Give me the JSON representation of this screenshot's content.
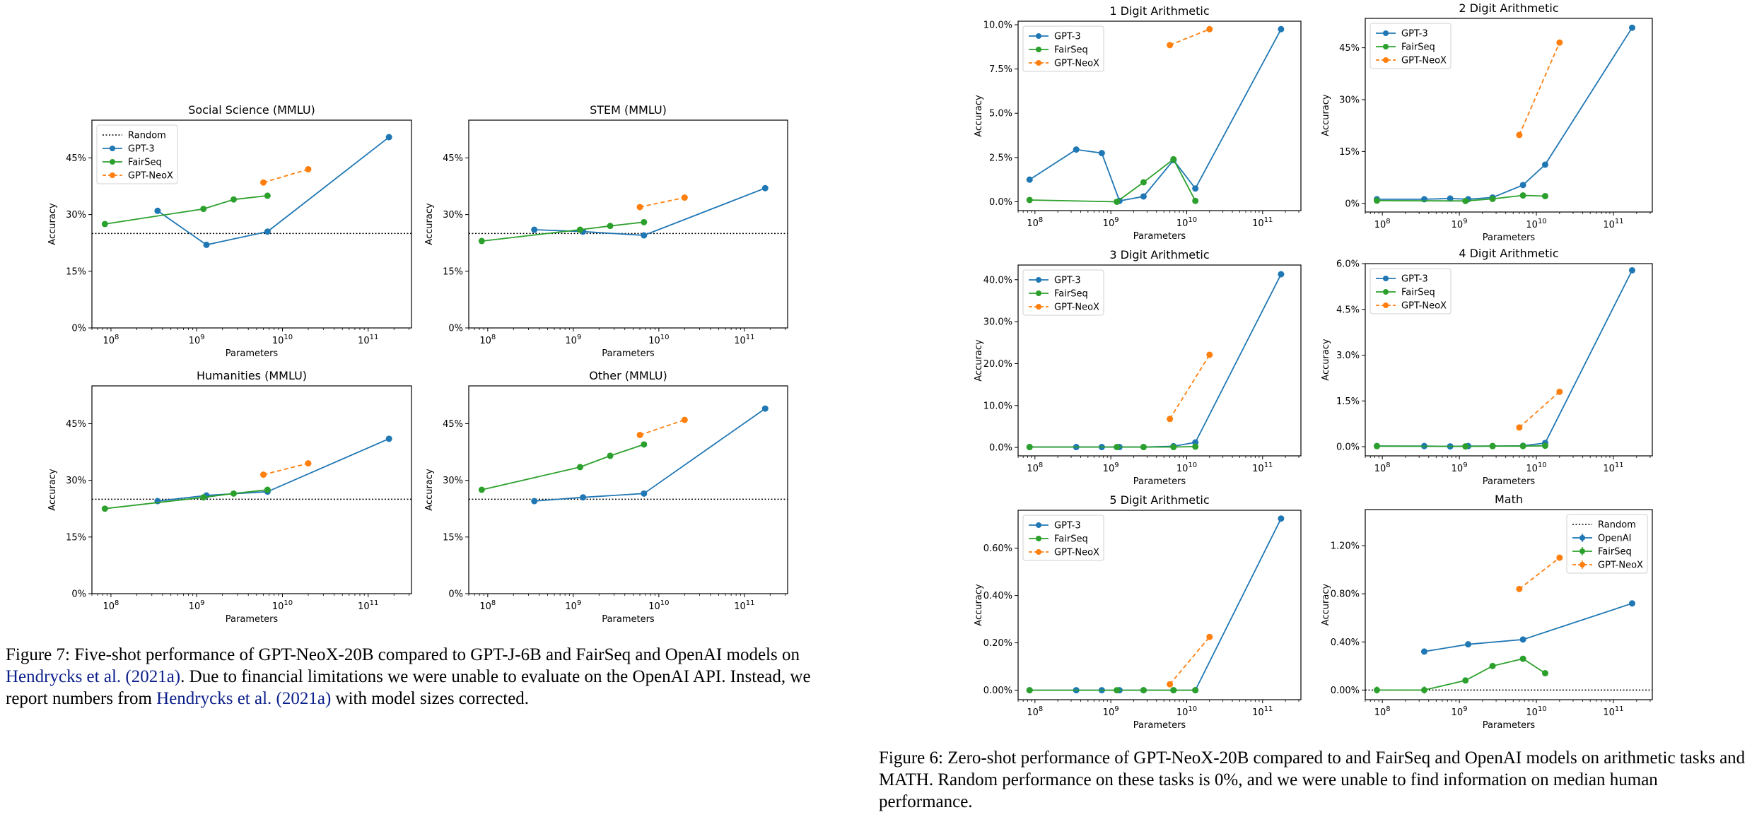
{
  "colors": {
    "gpt3": "#1f77b4",
    "fairseq": "#2ca02c",
    "neox": "#ff7f0e",
    "random": "#000000"
  },
  "caption_left": {
    "prefix": "Figure 7: Five-shot performance of GPT-NeoX-20B compared to GPT-J-6B and FairSeq and OpenAI models on ",
    "ref1": "Hendrycks et al. (2021a)",
    "middle": ". Due to financial limitations we were unable to evaluate on the OpenAI API. Instead, we report numbers from ",
    "ref2": "Hendrycks et al.",
    "ref2b": "(2021a)",
    "suffix": " with model sizes corrected."
  },
  "caption_right": {
    "text": "Figure 6: Zero-shot performance of GPT-NeoX-20B compared to and FairSeq and OpenAI models on arithmetic tasks and MATH. Random performance on these tasks is 0%, and we were unable to find information on median human performance."
  },
  "chart_data": [
    {
      "type": "line",
      "id": "social",
      "title": "Social Science (MMLU)",
      "xlabel": "Parameters",
      "ylabel": "Accuracy",
      "xscale": "log",
      "xlim": [
        60000000.0,
        320000000000.0
      ],
      "ylim": [
        0,
        55
      ],
      "yticks": [
        0,
        15,
        30,
        45
      ],
      "ytick_labels": [
        "0%",
        "15%",
        "30%",
        "45%"
      ],
      "xticks": [
        100000000.0,
        1000000000.0,
        10000000000.0,
        100000000000.0
      ],
      "random_line": 25,
      "legend": [
        "Random",
        "GPT-3",
        "FairSeq",
        "GPT-NeoX"
      ],
      "legend_loc": "upper-left",
      "series": [
        {
          "name": "GPT-3",
          "color": "gpt3",
          "dashed": false,
          "x": [
            350000000.0,
            1300000000.0,
            6700000000.0,
            175000000000.0
          ],
          "y": [
            31,
            22,
            25.5,
            50.5
          ]
        },
        {
          "name": "FairSeq",
          "color": "fairseq",
          "dashed": false,
          "x": [
            85000000.0,
            1200000000.0,
            2700000000.0,
            6700000000.0
          ],
          "y": [
            27.5,
            31.5,
            34,
            35
          ]
        },
        {
          "name": "GPT-NeoX",
          "color": "neox",
          "dashed": true,
          "x": [
            6000000000.0,
            20000000000.0
          ],
          "y": [
            38.5,
            42
          ]
        }
      ]
    },
    {
      "type": "line",
      "id": "stem",
      "title": "STEM (MMLU)",
      "xlabel": "Parameters",
      "ylabel": "Accuracy",
      "xscale": "log",
      "xlim": [
        60000000.0,
        320000000000.0
      ],
      "ylim": [
        0,
        55
      ],
      "yticks": [
        0,
        15,
        30,
        45
      ],
      "ytick_labels": [
        "0%",
        "15%",
        "30%",
        "45%"
      ],
      "xticks": [
        100000000.0,
        1000000000.0,
        10000000000.0,
        100000000000.0
      ],
      "random_line": 25,
      "legend": [],
      "legend_loc": "none",
      "series": [
        {
          "name": "GPT-3",
          "color": "gpt3",
          "dashed": false,
          "x": [
            350000000.0,
            1300000000.0,
            6700000000.0,
            175000000000.0
          ],
          "y": [
            26,
            25.5,
            24.5,
            37
          ]
        },
        {
          "name": "FairSeq",
          "color": "fairseq",
          "dashed": false,
          "x": [
            85000000.0,
            1200000000.0,
            2700000000.0,
            6700000000.0
          ],
          "y": [
            23,
            26,
            27,
            28
          ]
        },
        {
          "name": "GPT-NeoX",
          "color": "neox",
          "dashed": true,
          "x": [
            6000000000.0,
            20000000000.0
          ],
          "y": [
            32,
            34.5
          ]
        }
      ]
    },
    {
      "type": "line",
      "id": "humanities",
      "title": "Humanities (MMLU)",
      "xlabel": "Parameters",
      "ylabel": "Accuracy",
      "xscale": "log",
      "xlim": [
        60000000.0,
        320000000000.0
      ],
      "ylim": [
        0,
        55
      ],
      "yticks": [
        0,
        15,
        30,
        45
      ],
      "ytick_labels": [
        "0%",
        "15%",
        "30%",
        "45%"
      ],
      "xticks": [
        100000000.0,
        1000000000.0,
        10000000000.0,
        100000000000.0
      ],
      "random_line": 25,
      "legend": [],
      "legend_loc": "none",
      "series": [
        {
          "name": "GPT-3",
          "color": "gpt3",
          "dashed": false,
          "x": [
            350000000.0,
            1300000000.0,
            6700000000.0,
            175000000000.0
          ],
          "y": [
            24.5,
            26,
            27,
            41
          ]
        },
        {
          "name": "FairSeq",
          "color": "fairseq",
          "dashed": false,
          "x": [
            85000000.0,
            1200000000.0,
            2700000000.0,
            6700000000.0
          ],
          "y": [
            22.5,
            25.5,
            26.5,
            27.5
          ]
        },
        {
          "name": "GPT-NeoX",
          "color": "neox",
          "dashed": true,
          "x": [
            6000000000.0,
            20000000000.0
          ],
          "y": [
            31.5,
            34.5
          ]
        }
      ]
    },
    {
      "type": "line",
      "id": "other",
      "title": "Other (MMLU)",
      "xlabel": "Parameters",
      "ylabel": "Accuracy",
      "xscale": "log",
      "xlim": [
        60000000.0,
        320000000000.0
      ],
      "ylim": [
        0,
        55
      ],
      "yticks": [
        0,
        15,
        30,
        45
      ],
      "ytick_labels": [
        "0%",
        "15%",
        "30%",
        "45%"
      ],
      "xticks": [
        100000000.0,
        1000000000.0,
        10000000000.0,
        100000000000.0
      ],
      "random_line": 25,
      "legend": [],
      "legend_loc": "none",
      "series": [
        {
          "name": "GPT-3",
          "color": "gpt3",
          "dashed": false,
          "x": [
            350000000.0,
            1300000000.0,
            6700000000.0,
            175000000000.0
          ],
          "y": [
            24.5,
            25.5,
            26.5,
            49
          ]
        },
        {
          "name": "FairSeq",
          "color": "fairseq",
          "dashed": false,
          "x": [
            85000000.0,
            1200000000.0,
            2700000000.0,
            6700000000.0
          ],
          "y": [
            27.5,
            33.5,
            36.5,
            39.5
          ]
        },
        {
          "name": "GPT-NeoX",
          "color": "neox",
          "dashed": true,
          "x": [
            6000000000.0,
            20000000000.0
          ],
          "y": [
            42,
            46
          ]
        }
      ]
    },
    {
      "type": "line",
      "id": "arith1",
      "title": "1 Digit Arithmetic",
      "xlabel": "Parameters",
      "ylabel": "Accuracy",
      "xscale": "log",
      "xlim": [
        60000000.0,
        320000000000.0
      ],
      "ylim": [
        -0.5,
        10.2
      ],
      "yticks": [
        0,
        2.5,
        5,
        7.5,
        10
      ],
      "ytick_labels": [
        "0.0%",
        "2.5%",
        "5.0%",
        "7.5%",
        "10.0%"
      ],
      "xticks": [
        100000000.0,
        1000000000.0,
        10000000000.0,
        100000000000.0
      ],
      "random_line": null,
      "legend": [
        "GPT-3",
        "FairSeq",
        "GPT-NeoX"
      ],
      "legend_loc": "upper-left",
      "series": [
        {
          "name": "GPT-3",
          "color": "gpt3",
          "dashed": false,
          "x": [
            85000000.0,
            350000000.0,
            760000000.0,
            1300000000.0,
            2700000000.0,
            6700000000.0,
            13000000000.0,
            175000000000.0
          ],
          "y": [
            1.25,
            2.95,
            2.75,
            0.05,
            0.3,
            2.35,
            0.75,
            9.75
          ]
        },
        {
          "name": "FairSeq",
          "color": "fairseq",
          "dashed": false,
          "x": [
            85000000.0,
            1200000000.0,
            2700000000.0,
            6700000000.0,
            13000000000.0
          ],
          "y": [
            0.1,
            0.0,
            1.1,
            2.4,
            0.05
          ]
        },
        {
          "name": "GPT-NeoX",
          "color": "neox",
          "dashed": true,
          "x": [
            6000000000.0,
            20000000000.0
          ],
          "y": [
            8.85,
            9.75
          ]
        }
      ]
    },
    {
      "type": "line",
      "id": "arith2",
      "title": "2 Digit Arithmetic",
      "xlabel": "Parameters",
      "ylabel": "Accuracy",
      "xscale": "log",
      "xlim": [
        60000000.0,
        320000000000.0
      ],
      "ylim": [
        -2.5,
        53.5
      ],
      "yticks": [
        0,
        15,
        30,
        45
      ],
      "ytick_labels": [
        "0%",
        "15%",
        "30%",
        "45%"
      ],
      "xticks": [
        100000000.0,
        1000000000.0,
        10000000000.0,
        100000000000.0
      ],
      "random_line": null,
      "legend": [
        "GPT-3",
        "FairSeq",
        "GPT-NeoX"
      ],
      "legend_loc": "upper-left",
      "series": [
        {
          "name": "GPT-3",
          "color": "gpt3",
          "dashed": false,
          "x": [
            85000000.0,
            350000000.0,
            760000000.0,
            1300000000.0,
            2700000000.0,
            6700000000.0,
            13000000000.0,
            175000000000.0
          ],
          "y": [
            1.2,
            1.2,
            1.4,
            1.2,
            1.7,
            5.3,
            11.2,
            50.8
          ]
        },
        {
          "name": "FairSeq",
          "color": "fairseq",
          "dashed": false,
          "x": [
            85000000.0,
            1200000000.0,
            2700000000.0,
            6700000000.0,
            13000000000.0
          ],
          "y": [
            0.8,
            0.7,
            1.3,
            2.3,
            2.1
          ]
        },
        {
          "name": "GPT-NeoX",
          "color": "neox",
          "dashed": true,
          "x": [
            6000000000.0,
            20000000000.0
          ],
          "y": [
            19.8,
            46.5
          ]
        }
      ]
    },
    {
      "type": "line",
      "id": "arith3",
      "title": "3 Digit Arithmetic",
      "xlabel": "Parameters",
      "ylabel": "Accuracy",
      "xscale": "log",
      "xlim": [
        60000000.0,
        320000000000.0
      ],
      "ylim": [
        -2.0,
        43.5
      ],
      "yticks": [
        0,
        10,
        20,
        30,
        40
      ],
      "ytick_labels": [
        "0.0%",
        "10.0%",
        "20.0%",
        "30.0%",
        "40.0%"
      ],
      "xticks": [
        100000000.0,
        1000000000.0,
        10000000000.0,
        100000000000.0
      ],
      "random_line": null,
      "legend": [
        "GPT-3",
        "FairSeq",
        "GPT-NeoX"
      ],
      "legend_loc": "upper-left",
      "series": [
        {
          "name": "GPT-3",
          "color": "gpt3",
          "dashed": false,
          "x": [
            85000000.0,
            350000000.0,
            760000000.0,
            1300000000.0,
            2700000000.0,
            6700000000.0,
            13000000000.0,
            175000000000.0
          ],
          "y": [
            0.1,
            0.1,
            0.1,
            0.1,
            0.1,
            0.3,
            1.2,
            41.3
          ]
        },
        {
          "name": "FairSeq",
          "color": "fairseq",
          "dashed": false,
          "x": [
            85000000.0,
            1200000000.0,
            2700000000.0,
            6700000000.0,
            13000000000.0
          ],
          "y": [
            0.1,
            0.1,
            0.1,
            0.1,
            0.2
          ]
        },
        {
          "name": "GPT-NeoX",
          "color": "neox",
          "dashed": true,
          "x": [
            6000000000.0,
            20000000000.0
          ],
          "y": [
            6.8,
            22.1
          ]
        }
      ]
    },
    {
      "type": "line",
      "id": "arith4",
      "title": "4 Digit Arithmetic",
      "xlabel": "Parameters",
      "ylabel": "Accuracy",
      "xscale": "log",
      "xlim": [
        60000000.0,
        320000000000.0
      ],
      "ylim": [
        -0.3,
        6.0
      ],
      "yticks": [
        0,
        1.5,
        3,
        4.5,
        6
      ],
      "ytick_labels": [
        "0.0%",
        "1.5%",
        "3.0%",
        "4.5%",
        "6.0%"
      ],
      "xticks": [
        100000000.0,
        1000000000.0,
        10000000000.0,
        100000000000.0
      ],
      "random_line": null,
      "legend": [
        "GPT-3",
        "FairSeq",
        "GPT-NeoX"
      ],
      "legend_loc": "upper-left",
      "series": [
        {
          "name": "GPT-3",
          "color": "gpt3",
          "dashed": false,
          "x": [
            85000000.0,
            350000000.0,
            760000000.0,
            1300000000.0,
            2700000000.0,
            6700000000.0,
            13000000000.0,
            175000000000.0
          ],
          "y": [
            0.02,
            0.02,
            0.01,
            0.02,
            0.02,
            0.03,
            0.12,
            5.78
          ]
        },
        {
          "name": "FairSeq",
          "color": "fairseq",
          "dashed": false,
          "x": [
            85000000.0,
            1200000000.0,
            2700000000.0,
            6700000000.0,
            13000000000.0
          ],
          "y": [
            0.02,
            0.01,
            0.02,
            0.02,
            0.03
          ]
        },
        {
          "name": "GPT-NeoX",
          "color": "neox",
          "dashed": true,
          "x": [
            6000000000.0,
            20000000000.0
          ],
          "y": [
            0.63,
            1.8
          ]
        }
      ]
    },
    {
      "type": "line",
      "id": "arith5",
      "title": "5 Digit Arithmetic",
      "xlabel": "Parameters",
      "ylabel": "Accuracy",
      "xscale": "log",
      "xlim": [
        60000000.0,
        320000000000.0
      ],
      "ylim": [
        -0.04,
        0.76
      ],
      "yticks": [
        0,
        0.2,
        0.4,
        0.6
      ],
      "ytick_labels": [
        "0.00%",
        "0.20%",
        "0.40%",
        "0.60%"
      ],
      "xticks": [
        100000000.0,
        1000000000.0,
        10000000000.0,
        100000000000.0
      ],
      "random_line": null,
      "legend": [
        "GPT-3",
        "FairSeq",
        "GPT-NeoX"
      ],
      "legend_loc": "upper-left",
      "series": [
        {
          "name": "GPT-3",
          "color": "gpt3",
          "dashed": false,
          "x": [
            85000000.0,
            350000000.0,
            760000000.0,
            1300000000.0,
            2700000000.0,
            6700000000.0,
            13000000000.0,
            175000000000.0
          ],
          "y": [
            0,
            0,
            0,
            0,
            0,
            0,
            0,
            0.725
          ]
        },
        {
          "name": "FairSeq",
          "color": "fairseq",
          "dashed": false,
          "x": [
            85000000.0,
            1200000000.0,
            2700000000.0,
            6700000000.0,
            13000000000.0
          ],
          "y": [
            0,
            0,
            0,
            0,
            0
          ]
        },
        {
          "name": "GPT-NeoX",
          "color": "neox",
          "dashed": true,
          "x": [
            6000000000.0,
            20000000000.0
          ],
          "y": [
            0.025,
            0.225
          ]
        }
      ]
    },
    {
      "type": "line",
      "id": "math",
      "title": "Math",
      "xlabel": "Parameters",
      "ylabel": "Accuracy",
      "xscale": "log",
      "xlim": [
        60000000.0,
        320000000000.0
      ],
      "ylim": [
        -0.08,
        1.5
      ],
      "yticks": [
        0,
        0.4,
        0.8,
        1.2
      ],
      "ytick_labels": [
        "0.00%",
        "0.40%",
        "0.80%",
        "1.20%"
      ],
      "xticks": [
        100000000.0,
        1000000000.0,
        10000000000.0,
        100000000000.0
      ],
      "random_line": 0,
      "legend": [
        "Random",
        "OpenAI",
        "FairSeq",
        "GPT-NeoX"
      ],
      "legend_loc": "upper-right",
      "legend_errorbar": true,
      "series": [
        {
          "name": "OpenAI",
          "color": "gpt3",
          "dashed": false,
          "x": [
            350000000.0,
            1300000000.0,
            6700000000.0,
            175000000000.0
          ],
          "y": [
            0.32,
            0.38,
            0.42,
            0.72
          ]
        },
        {
          "name": "FairSeq",
          "color": "fairseq",
          "dashed": false,
          "x": [
            85000000.0,
            350000000.0,
            1200000000.0,
            2700000000.0,
            6700000000.0,
            13000000000.0
          ],
          "y": [
            0.0,
            0.0,
            0.08,
            0.2,
            0.26,
            0.14
          ],
          "err": [
            0.03,
            0.03,
            0,
            0,
            0,
            0
          ]
        },
        {
          "name": "GPT-NeoX",
          "color": "neox",
          "dashed": true,
          "x": [
            6000000000.0,
            20000000000.0
          ],
          "y": [
            0.84,
            1.1
          ]
        }
      ]
    }
  ]
}
